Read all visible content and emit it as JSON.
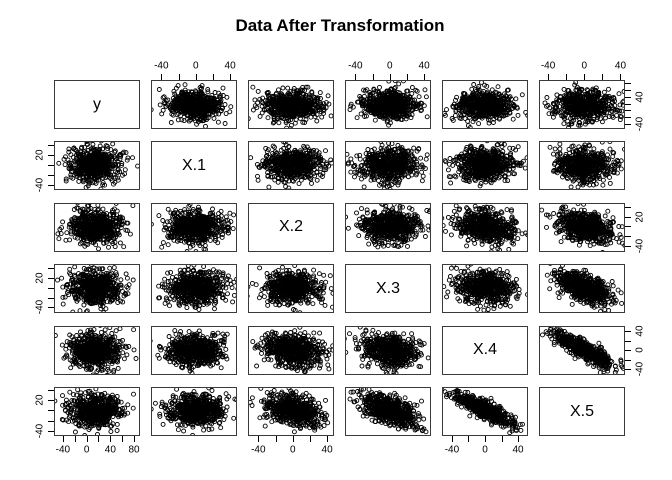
{
  "title": "Data After Transformation",
  "colors": {
    "background": "#ffffff",
    "point_stroke": "#000000",
    "box_border": "#3a3a3a",
    "text": "#000000"
  },
  "chart_data": {
    "type": "scatter",
    "subtype": "scatterplot-matrix",
    "title": "Data After Transformation",
    "grid": 6,
    "variables": [
      {
        "name": "y",
        "domain": [
          -55,
          90
        ],
        "mean": 15,
        "sd": 22
      },
      {
        "name": "X.1",
        "domain": [
          -52,
          48
        ],
        "mean": 0,
        "sd": 17
      },
      {
        "name": "X.2",
        "domain": [
          -52,
          48
        ],
        "mean": 0,
        "sd": 17
      },
      {
        "name": "X.3",
        "domain": [
          -52,
          48
        ],
        "mean": 0,
        "sd": 17
      },
      {
        "name": "X.4",
        "domain": [
          -52,
          52
        ],
        "mean": 0,
        "sd": 18
      },
      {
        "name": "X.5",
        "domain": [
          -50,
          45
        ],
        "mean": 0,
        "sd": 16
      }
    ],
    "correlations": [
      [
        1.0,
        0.0,
        0.0,
        0.0,
        0.0,
        0.0
      ],
      [
        0.0,
        1.0,
        0.0,
        0.0,
        0.0,
        0.0
      ],
      [
        0.0,
        0.0,
        1.0,
        0.0,
        -0.15,
        -0.35
      ],
      [
        0.0,
        0.0,
        0.0,
        1.0,
        -0.15,
        -0.55
      ],
      [
        0.0,
        0.0,
        -0.15,
        -0.15,
        1.0,
        -0.85
      ],
      [
        0.0,
        0.0,
        -0.35,
        -0.55,
        -0.85,
        1.0
      ]
    ],
    "points_per_panel": 600,
    "point_style": {
      "shape": "open-circle",
      "radius": 2.0,
      "stroke_width": 0.9
    },
    "axes": {
      "top": [
        {
          "col": 2,
          "ticks": [
            {
              "v": -40,
              "label": "-40"
            },
            {
              "v": -20
            },
            {
              "v": 0,
              "label": "0"
            },
            {
              "v": 20
            },
            {
              "v": 40,
              "label": "40"
            }
          ]
        },
        {
          "col": 4,
          "ticks": [
            {
              "v": -40,
              "label": "-40"
            },
            {
              "v": -20
            },
            {
              "v": 0,
              "label": "0"
            },
            {
              "v": 20
            },
            {
              "v": 40,
              "label": "40"
            }
          ]
        },
        {
          "col": 6,
          "ticks": [
            {
              "v": -40,
              "label": "-40"
            },
            {
              "v": -20
            },
            {
              "v": 0,
              "label": "0"
            },
            {
              "v": 20
            },
            {
              "v": 40,
              "label": "40"
            }
          ]
        }
      ],
      "bottom": [
        {
          "col": 1,
          "ticks": [
            {
              "v": -40,
              "label": "-40"
            },
            {
              "v": -20
            },
            {
              "v": 0,
              "label": "0"
            },
            {
              "v": 20
            },
            {
              "v": 40,
              "label": "40"
            },
            {
              "v": 60
            },
            {
              "v": 80,
              "label": "80"
            }
          ]
        },
        {
          "col": 3,
          "ticks": [
            {
              "v": -40,
              "label": "-40"
            },
            {
              "v": -20
            },
            {
              "v": 0,
              "label": "0"
            },
            {
              "v": 20
            },
            {
              "v": 40,
              "label": "40"
            }
          ]
        },
        {
          "col": 5,
          "ticks": [
            {
              "v": -40,
              "label": "-40"
            },
            {
              "v": -20
            },
            {
              "v": 0,
              "label": "0"
            },
            {
              "v": 20
            },
            {
              "v": 40,
              "label": "40"
            }
          ]
        }
      ],
      "left": [
        {
          "row": 2,
          "ticks": [
            {
              "v": 40
            },
            {
              "v": 20,
              "label": "20"
            },
            {
              "v": 0
            },
            {
              "v": -20
            },
            {
              "v": -40,
              "label": "-40"
            }
          ]
        },
        {
          "row": 4,
          "ticks": [
            {
              "v": 40
            },
            {
              "v": 20,
              "label": "20"
            },
            {
              "v": 0
            },
            {
              "v": -20
            },
            {
              "v": -40,
              "label": "-40"
            }
          ]
        },
        {
          "row": 6,
          "ticks": [
            {
              "v": 40
            },
            {
              "v": 20,
              "label": "20"
            },
            {
              "v": 0
            },
            {
              "v": -20
            },
            {
              "v": -40,
              "label": "-40"
            }
          ]
        }
      ],
      "right": [
        {
          "row": 1,
          "ticks": [
            {
              "v": 80
            },
            {
              "v": 60
            },
            {
              "v": 40,
              "label": "40"
            },
            {
              "v": 20
            },
            {
              "v": 0
            },
            {
              "v": -20
            },
            {
              "v": -40,
              "label": "-40"
            }
          ]
        },
        {
          "row": 3,
          "ticks": [
            {
              "v": 40
            },
            {
              "v": 20,
              "label": "20"
            },
            {
              "v": 0
            },
            {
              "v": -20
            },
            {
              "v": -40,
              "label": "-40"
            }
          ]
        },
        {
          "row": 5,
          "ticks": [
            {
              "v": 40,
              "label": "40"
            },
            {
              "v": 20
            },
            {
              "v": 0,
              "label": "0"
            },
            {
              "v": -20
            },
            {
              "v": -40,
              "label": "-40"
            }
          ]
        }
      ]
    }
  }
}
